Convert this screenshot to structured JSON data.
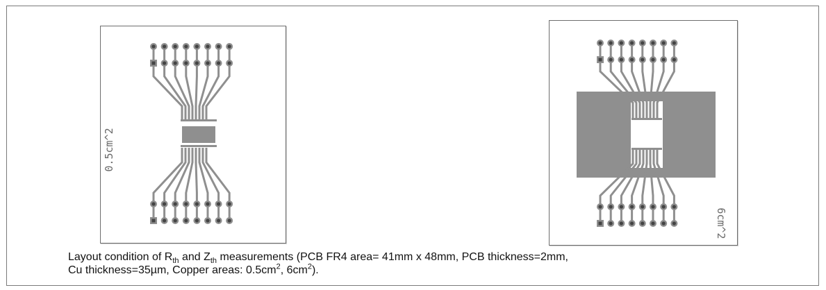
{
  "boards": {
    "small": {
      "area_label": "0.5cm^2",
      "copper_area_cm2": 0.5
    },
    "large": {
      "area_label": "6cm^2",
      "copper_area_cm2": 6
    }
  },
  "caption": {
    "part1": "Layout condition of R",
    "rth_sub": "th",
    "part2": " and Z",
    "zth_sub": "th",
    "part3": " measurements (PCB FR4 area= 41mm x 48mm, PCB thickness=2mm,",
    "part4": "Cu thickness=35µm, Copper areas: 0.5cm",
    "sup1": "2",
    "part5": ", 6cm",
    "sup2": "2",
    "part6": ")."
  },
  "colors": {
    "copper": "#8f8f8f",
    "pad_dark": "#444444",
    "border": "#6d6d6d"
  }
}
